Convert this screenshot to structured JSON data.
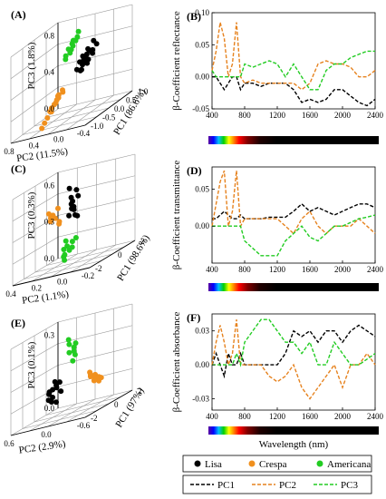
{
  "colors": {
    "lisa": "#000000",
    "crespa": "#f0901e",
    "americana": "#22cc22",
    "pc1": "#000000",
    "pc2": "#e6821e",
    "pc3": "#22cc22",
    "axis": "#000000",
    "grid": "#999999"
  },
  "legend_scatter": [
    {
      "label": "Lisa",
      "color": "#000000"
    },
    {
      "label": "Crespa",
      "color": "#f0901e"
    },
    {
      "label": "Americana",
      "color": "#22cc22"
    }
  ],
  "legend_lines": [
    {
      "label": "PC1",
      "color": "#000000"
    },
    {
      "label": "PC2",
      "color": "#e6821e"
    },
    {
      "label": "PC3",
      "color": "#22cc22"
    }
  ],
  "x_axis_title": "Wavelength (nm)",
  "chart_data": [
    {
      "type": "scatter",
      "panel": "(A)",
      "axis_labels": {
        "pc1": "PC1 (86.6%)",
        "pc2": "PC2 (11.5%)",
        "pc3": "PC3 (1.8%)"
      },
      "ticks": {
        "pc1": [
          "1.0",
          "0.5",
          "0.0",
          "-0.5",
          "-1.0"
        ],
        "pc2": [
          "0.8",
          "0.4",
          "0.0",
          "-0.4"
        ],
        "pc3": [
          "0.8",
          "0.4",
          "0.0"
        ]
      },
      "groups": [
        {
          "name": "Lisa",
          "points": [
            [
              -0.8,
              0.2,
              0.65
            ],
            [
              -0.75,
              0.1,
              0.6
            ],
            [
              -0.7,
              0.15,
              0.55
            ],
            [
              -0.65,
              0.05,
              0.5
            ],
            [
              -0.6,
              0.0,
              0.55
            ],
            [
              -0.55,
              -0.05,
              0.5
            ],
            [
              -0.5,
              0.1,
              0.48
            ],
            [
              -0.45,
              0.05,
              0.45
            ],
            [
              -0.4,
              0.0,
              0.5
            ],
            [
              -0.35,
              -0.05,
              0.42
            ],
            [
              -0.7,
              0.2,
              0.7
            ],
            [
              -0.62,
              0.12,
              0.6
            ],
            [
              -0.52,
              0.02,
              0.52
            ],
            [
              -0.58,
              0.08,
              0.45
            ],
            [
              -0.48,
              -0.02,
              0.4
            ],
            [
              -0.42,
              0.1,
              0.55
            ],
            [
              -0.38,
              0.05,
              0.38
            ],
            [
              -0.66,
              -0.02,
              0.58
            ],
            [
              -0.56,
              0.14,
              0.62
            ],
            [
              -0.46,
              0.12,
              0.47
            ]
          ]
        },
        {
          "name": "Crespa",
          "points": [
            [
              0.0,
              -0.2,
              0.2
            ],
            [
              0.1,
              -0.25,
              0.15
            ],
            [
              0.15,
              -0.3,
              0.1
            ],
            [
              0.2,
              -0.2,
              0.12
            ],
            [
              0.25,
              -0.35,
              0.05
            ],
            [
              0.3,
              -0.3,
              0.0
            ],
            [
              0.35,
              -0.4,
              -0.05
            ],
            [
              0.05,
              -0.15,
              0.22
            ],
            [
              0.12,
              -0.22,
              0.18
            ],
            [
              0.22,
              -0.28,
              0.08
            ],
            [
              0.28,
              -0.38,
              0.02
            ],
            [
              0.4,
              -0.45,
              -0.1
            ],
            [
              0.45,
              -0.5,
              -0.15
            ],
            [
              0.18,
              -0.18,
              0.16
            ],
            [
              0.32,
              -0.26,
              0.04
            ]
          ]
        },
        {
          "name": "Americana",
          "points": [
            [
              0.1,
              0.5,
              0.75
            ],
            [
              0.2,
              0.55,
              0.7
            ],
            [
              0.25,
              0.5,
              0.65
            ],
            [
              0.3,
              0.6,
              0.7
            ],
            [
              0.35,
              0.55,
              0.6
            ],
            [
              0.4,
              0.5,
              0.62
            ],
            [
              0.15,
              0.6,
              0.8
            ],
            [
              0.45,
              0.45,
              0.55
            ],
            [
              0.28,
              0.42,
              0.58
            ],
            [
              0.38,
              0.62,
              0.66
            ],
            [
              0.22,
              0.48,
              0.72
            ],
            [
              0.5,
              0.5,
              0.5
            ]
          ]
        }
      ]
    },
    {
      "type": "line",
      "panel": "(B)",
      "ylabel": "β-Coefficient reflectance",
      "xlim": [
        400,
        2400
      ],
      "ylim": [
        -0.05,
        0.1
      ],
      "xticks": [
        400,
        800,
        1200,
        1600,
        2000,
        2400
      ],
      "yticks": [
        -0.05,
        0.0,
        0.05,
        0.1
      ],
      "ytick_labels": [
        "-0.05",
        "0.00",
        "0.05",
        "0.10"
      ],
      "x": [
        400,
        450,
        500,
        550,
        600,
        650,
        700,
        750,
        800,
        900,
        1000,
        1100,
        1200,
        1300,
        1400,
        1500,
        1600,
        1700,
        1800,
        1900,
        2000,
        2100,
        2200,
        2300,
        2400
      ],
      "series": [
        {
          "name": "PC1",
          "values": [
            0.0,
            0.0,
            -0.01,
            -0.02,
            -0.01,
            0.0,
            0.0,
            -0.02,
            -0.01,
            -0.01,
            -0.015,
            -0.01,
            -0.01,
            -0.01,
            -0.02,
            -0.04,
            -0.035,
            -0.04,
            -0.035,
            -0.02,
            -0.02,
            -0.03,
            -0.04,
            -0.045,
            -0.035
          ]
        },
        {
          "name": "PC2",
          "values": [
            0.01,
            0.04,
            0.085,
            0.06,
            0.0,
            0.02,
            0.085,
            0.0,
            -0.01,
            -0.005,
            -0.01,
            -0.01,
            -0.01,
            -0.01,
            -0.01,
            -0.02,
            -0.01,
            0.02,
            0.025,
            0.02,
            0.02,
            0.015,
            0.0,
            0.0,
            0.01
          ]
        },
        {
          "name": "PC3",
          "values": [
            0.01,
            0.0,
            0.0,
            0.0,
            0.0,
            0.0,
            0.0,
            0.0,
            0.02,
            0.015,
            0.02,
            0.025,
            0.02,
            0.0,
            0.02,
            0.0,
            -0.02,
            -0.02,
            0.01,
            0.02,
            0.02,
            0.03,
            0.035,
            0.04,
            0.04
          ]
        }
      ]
    },
    {
      "type": "scatter",
      "panel": "(C)",
      "axis_labels": {
        "pc1": "PC1 (98.6%)",
        "pc2": "PC2 (1.1%)",
        "pc3": "PC3 (0.3%)"
      },
      "ticks": {
        "pc1": [
          "2",
          "0",
          "-2"
        ],
        "pc2": [
          "0.4",
          "0.2",
          "0.0",
          "-0.2"
        ],
        "pc3": [
          "0.6",
          "0.3",
          "0.0"
        ]
      },
      "groups": [
        {
          "name": "Lisa",
          "points": [
            [
              0.0,
              0.0,
              0.5
            ],
            [
              0.1,
              0.05,
              0.45
            ],
            [
              -0.2,
              0.0,
              0.4
            ],
            [
              0.2,
              0.1,
              0.35
            ],
            [
              -0.1,
              0.05,
              0.3
            ],
            [
              0.0,
              0.1,
              0.55
            ],
            [
              0.15,
              0.0,
              0.6
            ],
            [
              -0.15,
              0.08,
              0.28
            ],
            [
              0.05,
              0.02,
              0.38
            ],
            [
              0.25,
              0.06,
              0.42
            ],
            [
              -0.05,
              0.12,
              0.48
            ],
            [
              0.1,
              -0.02,
              0.32
            ]
          ]
        },
        {
          "name": "Crespa",
          "points": [
            [
              1.5,
              0.1,
              0.4
            ],
            [
              1.7,
              0.05,
              0.35
            ],
            [
              1.8,
              0.12,
              0.3
            ],
            [
              2.0,
              0.08,
              0.32
            ],
            [
              1.6,
              0.15,
              0.25
            ],
            [
              1.9,
              0.02,
              0.38
            ],
            [
              2.1,
              0.1,
              0.28
            ],
            [
              1.75,
              0.18,
              0.22
            ]
          ]
        },
        {
          "name": "Americana",
          "points": [
            [
              -0.5,
              -0.1,
              0.0
            ],
            [
              -0.3,
              -0.05,
              0.05
            ],
            [
              -0.1,
              -0.15,
              -0.05
            ],
            [
              0.0,
              -0.08,
              0.02
            ],
            [
              -0.4,
              -0.2,
              0.1
            ],
            [
              0.1,
              -0.12,
              0.0
            ],
            [
              -0.2,
              -0.18,
              -0.1
            ],
            [
              -0.6,
              -0.05,
              0.08
            ],
            [
              0.2,
              -0.1,
              -0.08
            ],
            [
              -0.35,
              -0.12,
              -0.02
            ]
          ]
        }
      ]
    },
    {
      "type": "line",
      "panel": "(D)",
      "ylabel": "β-Coefficient transmittance",
      "xlim": [
        400,
        2400
      ],
      "ylim": [
        -0.05,
        0.08
      ],
      "xticks": [
        400,
        800,
        1200,
        1600,
        2000,
        2400
      ],
      "yticks": [
        0.0,
        0.05
      ],
      "ytick_labels": [
        "0.00",
        "0.05"
      ],
      "x": [
        400,
        450,
        500,
        550,
        600,
        650,
        700,
        750,
        800,
        900,
        1000,
        1100,
        1200,
        1300,
        1400,
        1500,
        1600,
        1700,
        1800,
        1900,
        2000,
        2100,
        2200,
        2300,
        2400
      ],
      "series": [
        {
          "name": "PC1",
          "values": [
            0.01,
            0.01,
            0.015,
            0.02,
            0.015,
            0.01,
            0.01,
            0.015,
            0.01,
            0.01,
            0.01,
            0.012,
            0.012,
            0.012,
            0.02,
            0.03,
            0.02,
            0.025,
            0.02,
            0.015,
            0.02,
            0.025,
            0.03,
            0.03,
            0.025
          ]
        },
        {
          "name": "PC2",
          "values": [
            0.0,
            0.03,
            0.06,
            0.075,
            0.0,
            0.02,
            0.075,
            0.0,
            0.01,
            0.01,
            0.01,
            0.01,
            0.01,
            0.0,
            -0.01,
            0.01,
            0.02,
            0.0,
            -0.01,
            0.0,
            0.0,
            0.0,
            0.01,
            0.0,
            -0.01
          ]
        },
        {
          "name": "PC3",
          "values": [
            0.0,
            0.0,
            0.0,
            0.0,
            0.0,
            0.0,
            0.0,
            0.0,
            -0.02,
            -0.03,
            -0.04,
            -0.04,
            -0.04,
            -0.02,
            -0.01,
            0.0,
            -0.015,
            -0.02,
            -0.01,
            0.0,
            0.0,
            0.005,
            0.01,
            0.012,
            0.015
          ]
        }
      ]
    },
    {
      "type": "scatter",
      "panel": "(E)",
      "axis_labels": {
        "pc1": "PC1 (97%)",
        "pc2": "PC2 (2.9%)",
        "pc3": "PC3 (0.1%)"
      },
      "ticks": {
        "pc1": [
          "2",
          "0",
          "-2"
        ],
        "pc2": [
          "0.6",
          "0.0",
          "-0.6"
        ],
        "pc3": [
          "0.3",
          "0.0"
        ]
      },
      "groups": [
        {
          "name": "Lisa",
          "points": [
            [
              0.5,
              -0.2,
              0.0
            ],
            [
              0.8,
              -0.1,
              0.05
            ],
            [
              1.0,
              -0.3,
              -0.02
            ],
            [
              1.2,
              -0.2,
              0.02
            ],
            [
              0.6,
              -0.35,
              -0.05
            ],
            [
              1.4,
              -0.25,
              0.0
            ],
            [
              0.9,
              -0.4,
              -0.04
            ],
            [
              1.1,
              -0.15,
              0.06
            ],
            [
              0.7,
              -0.28,
              0.03
            ],
            [
              1.3,
              -0.32,
              -0.03
            ],
            [
              1.5,
              -0.18,
              0.01
            ],
            [
              0.85,
              -0.22,
              0.04
            ]
          ]
        },
        {
          "name": "Crespa",
          "points": [
            [
              -1.0,
              0.5,
              0.0
            ],
            [
              -1.2,
              0.4,
              0.02
            ],
            [
              -0.8,
              0.55,
              -0.02
            ],
            [
              -1.4,
              0.45,
              0.0
            ],
            [
              -0.9,
              0.35,
              0.03
            ],
            [
              -1.1,
              0.6,
              -0.03
            ],
            [
              -1.3,
              0.3,
              0.01
            ],
            [
              -0.7,
              0.42,
              0.04
            ],
            [
              -1.5,
              0.5,
              -0.01
            ],
            [
              -1.0,
              0.3,
              0.02
            ]
          ]
        },
        {
          "name": "Americana",
          "points": [
            [
              0.0,
              0.1,
              0.2
            ],
            [
              0.2,
              0.0,
              0.25
            ],
            [
              -0.2,
              0.05,
              0.18
            ],
            [
              0.1,
              0.15,
              0.22
            ],
            [
              0.3,
              0.05,
              0.2
            ],
            [
              -0.1,
              0.0,
              0.15
            ],
            [
              0.15,
              -0.05,
              0.28
            ],
            [
              0.05,
              0.2,
              0.24
            ]
          ]
        }
      ]
    },
    {
      "type": "line",
      "panel": "(F)",
      "ylabel": "β-Coefficient absorbance",
      "xlim": [
        400,
        2400
      ],
      "ylim": [
        -0.04,
        0.045
      ],
      "xticks": [
        400,
        800,
        1200,
        1600,
        2000,
        2400
      ],
      "yticks": [
        -0.03,
        0.0,
        0.03
      ],
      "ytick_labels": [
        "-0.03",
        "0.00",
        "0.03"
      ],
      "x": [
        400,
        450,
        500,
        550,
        600,
        650,
        700,
        750,
        800,
        900,
        1000,
        1100,
        1200,
        1300,
        1400,
        1500,
        1600,
        1700,
        1800,
        1900,
        2000,
        2100,
        2200,
        2300,
        2400
      ],
      "series": [
        {
          "name": "PC1",
          "values": [
            0.0,
            0.01,
            0.0,
            -0.01,
            0.01,
            0.0,
            0.0,
            0.01,
            0.0,
            0.0,
            0.0,
            0.0,
            0.0,
            0.01,
            0.03,
            0.025,
            0.03,
            0.02,
            0.03,
            0.03,
            0.02,
            0.03,
            0.035,
            0.03,
            0.025
          ]
        },
        {
          "name": "PC2",
          "values": [
            0.0,
            0.02,
            0.035,
            0.02,
            0.0,
            0.01,
            0.04,
            0.0,
            0.0,
            0.0,
            0.0,
            -0.01,
            -0.015,
            -0.01,
            0.0,
            -0.02,
            -0.03,
            -0.02,
            -0.01,
            0.0,
            -0.02,
            0.0,
            0.0,
            0.01,
            0.0
          ]
        },
        {
          "name": "PC3",
          "values": [
            0.0,
            0.0,
            0.0,
            0.0,
            0.0,
            0.0,
            0.01,
            0.0,
            0.02,
            0.03,
            0.04,
            0.04,
            0.03,
            0.02,
            0.02,
            0.01,
            0.02,
            0.0,
            0.0,
            0.02,
            0.01,
            0.0,
            0.0,
            0.005,
            0.01
          ]
        }
      ]
    }
  ]
}
